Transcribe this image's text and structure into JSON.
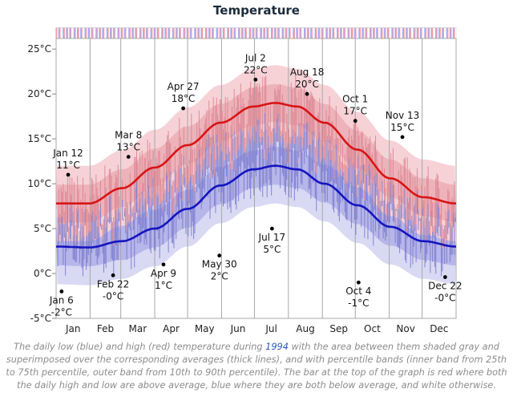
{
  "chart_data": {
    "type": "line",
    "title": "Temperature",
    "year": "1994",
    "y_unit": "°C",
    "ylim": [
      -5,
      26
    ],
    "yticks": [
      {
        "v": 25,
        "label": "25°C"
      },
      {
        "v": 20,
        "label": "20°C"
      },
      {
        "v": 15,
        "label": "15°C"
      },
      {
        "v": 10,
        "label": "10°C"
      },
      {
        "v": 5,
        "label": "5°C"
      },
      {
        "v": 0,
        "label": "0°C"
      },
      {
        "v": -5,
        "label": "-5°C"
      }
    ],
    "months": [
      "Jan",
      "Feb",
      "Mar",
      "Apr",
      "May",
      "Jun",
      "Jul",
      "Aug",
      "Sep",
      "Oct",
      "Nov",
      "Dec"
    ],
    "grid": true,
    "averages": {
      "high": [
        {
          "day": 0,
          "v": 7.8
        },
        {
          "day": 30,
          "v": 7.8
        },
        {
          "day": 60,
          "v": 9.5
        },
        {
          "day": 90,
          "v": 11.8
        },
        {
          "day": 120,
          "v": 14.3
        },
        {
          "day": 150,
          "v": 16.8
        },
        {
          "day": 180,
          "v": 18.6
        },
        {
          "day": 200,
          "v": 19.0
        },
        {
          "day": 220,
          "v": 18.6
        },
        {
          "day": 245,
          "v": 16.8
        },
        {
          "day": 275,
          "v": 13.8
        },
        {
          "day": 305,
          "v": 10.6
        },
        {
          "day": 335,
          "v": 8.5
        },
        {
          "day": 365,
          "v": 7.8
        }
      ],
      "low": [
        {
          "day": 0,
          "v": 3.0
        },
        {
          "day": 30,
          "v": 2.9
        },
        {
          "day": 60,
          "v": 3.6
        },
        {
          "day": 90,
          "v": 5.0
        },
        {
          "day": 120,
          "v": 7.2
        },
        {
          "day": 150,
          "v": 9.8
        },
        {
          "day": 180,
          "v": 11.6
        },
        {
          "day": 200,
          "v": 12.0
        },
        {
          "day": 220,
          "v": 11.6
        },
        {
          "day": 245,
          "v": 10.0
        },
        {
          "day": 275,
          "v": 7.6
        },
        {
          "day": 305,
          "v": 5.2
        },
        {
          "day": 335,
          "v": 3.6
        },
        {
          "day": 365,
          "v": 3.0
        }
      ]
    },
    "annotations": [
      {
        "date": "Jan 6",
        "value": "-2°C",
        "day": 5,
        "v": -2
      },
      {
        "date": "Jan 12",
        "value": "11°C",
        "day": 11,
        "v": 11
      },
      {
        "date": "Feb 22",
        "value": "-0°C",
        "day": 52,
        "v": -0.2
      },
      {
        "date": "Mar 8",
        "value": "13°C",
        "day": 66,
        "v": 13
      },
      {
        "date": "Apr 9",
        "value": "1°C",
        "day": 98,
        "v": 1
      },
      {
        "date": "Apr 27",
        "value": "18°C",
        "day": 116,
        "v": 18.4
      },
      {
        "date": "May 30",
        "value": "2°C",
        "day": 149,
        "v": 2
      },
      {
        "date": "Jul 2",
        "value": "22°C",
        "day": 182,
        "v": 21.6
      },
      {
        "date": "Jul 17",
        "value": "5°C",
        "day": 197,
        "v": 5
      },
      {
        "date": "Aug 18",
        "value": "20°C",
        "day": 229,
        "v": 20
      },
      {
        "date": "Oct 1",
        "value": "17°C",
        "day": 273,
        "v": 17
      },
      {
        "date": "Oct 4",
        "value": "-1°C",
        "day": 276,
        "v": -1
      },
      {
        "date": "Nov 13",
        "value": "15°C",
        "day": 316,
        "v": 15.2
      },
      {
        "date": "Dec 22",
        "value": "-0°C",
        "day": 355,
        "v": -0.4
      }
    ],
    "colors": {
      "high_line": "#d81414",
      "low_line": "#1414c0",
      "high_bar": "#d9828f",
      "low_bar": "#7777cc",
      "top_strip_high": "#f0a0a8",
      "top_strip_low": "#a8a8f0"
    }
  },
  "caption": {
    "before": "The daily low (blue) and high (red) temperature during ",
    "year": "1994",
    "after": " with the area between them shaded gray and superimposed over the corresponding averages (thick lines), and with percentile bands (inner band from 25th to 75th percentile, outer band from 10th to 90th percentile). The bar at the top of the graph is red where both the daily high and low are above average, blue where they are both below average, and white otherwise."
  }
}
